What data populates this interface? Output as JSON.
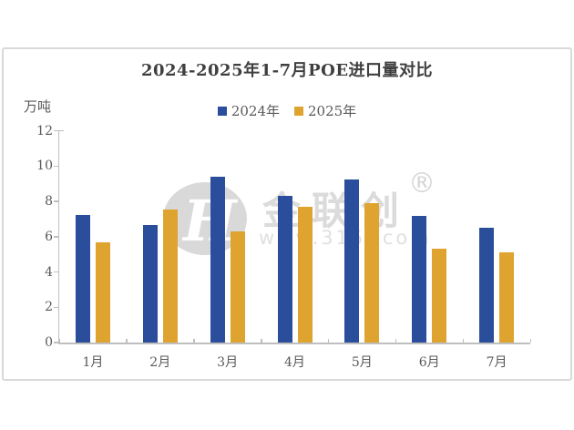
{
  "panel": {
    "title": "2024-2025年1-7月POE进口量对比",
    "unit_label": "万吨"
  },
  "legend": {
    "items": [
      {
        "label": "2024年",
        "color": "#2a4e9b"
      },
      {
        "label": "2025年",
        "color": "#dfa32f"
      }
    ]
  },
  "watermark": {
    "logo_letter": "H",
    "brand": "金联创",
    "registered": "®",
    "url": "www.315i.com"
  },
  "colors": {
    "axis": "#bfbfbf",
    "tick_text": "#595959",
    "title_text": "#3f3f3f",
    "panel_border": "#d9d9d9",
    "watermark": "#dbdbdb"
  },
  "chart_data": {
    "type": "bar",
    "title": "2024-2025年1-7月POE进口量对比",
    "xlabel": "",
    "ylabel": "万吨",
    "categories": [
      "1月",
      "2月",
      "3月",
      "4月",
      "5月",
      "6月",
      "7月"
    ],
    "series": [
      {
        "name": "2024年",
        "color": "#2a4e9b",
        "values": [
          7.25,
          6.65,
          9.4,
          8.3,
          9.25,
          7.2,
          6.5
        ]
      },
      {
        "name": "2025年",
        "color": "#dfa32f",
        "values": [
          5.7,
          7.55,
          6.3,
          7.7,
          7.9,
          5.3,
          5.1
        ]
      }
    ],
    "ylim": [
      0,
      12
    ],
    "ytick_step": 2,
    "grid": false,
    "legend_position": "top-center"
  }
}
